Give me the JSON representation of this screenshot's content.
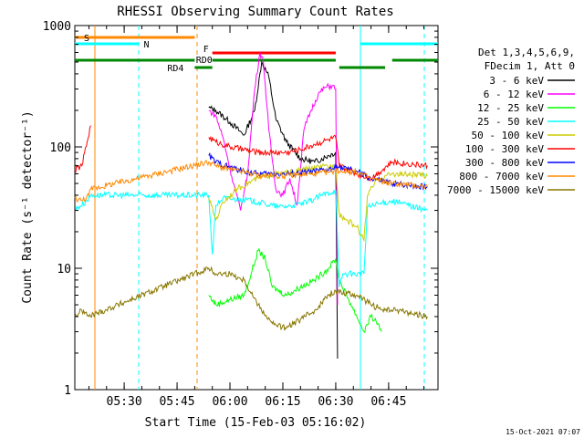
{
  "chart_data": {
    "type": "line",
    "title": "RHESSI Observing Summary Count Rates",
    "xlabel": "Start Time (15-Feb-03 05:16:02)",
    "ylabel": "Count Rate (s⁻¹ detector⁻¹)",
    "yscale": "log",
    "ylim": [
      1,
      1000
    ],
    "xlim_minutes": [
      0,
      103
    ],
    "x_ticks": [
      {
        "t": 14,
        "label": "05:30"
      },
      {
        "t": 29,
        "label": "05:45"
      },
      {
        "t": 44,
        "label": "06:00"
      },
      {
        "t": 59,
        "label": "06:15"
      },
      {
        "t": 74,
        "label": "06:30"
      },
      {
        "t": 89,
        "label": "06:45"
      }
    ],
    "y_ticks": [
      {
        "v": 1,
        "label": "1"
      },
      {
        "v": 10,
        "label": "10"
      },
      {
        "v": 100,
        "label": "100"
      },
      {
        "v": 1000,
        "label": "1000"
      }
    ],
    "legend_header": [
      "Det 1,3,4,5,6,9,",
      "FDecim 1, Att 0"
    ],
    "legend_position": "right",
    "series": [
      {
        "name": "3 - 6 keV",
        "color": "#000000",
        "x": [
          38,
          40,
          44,
          48,
          51,
          53,
          55,
          57,
          60,
          64,
          68,
          72,
          74,
          74.5
        ],
        "y": [
          210,
          200,
          160,
          125,
          200,
          500,
          380,
          170,
          110,
          80,
          75,
          85,
          90,
          1.8
        ]
      },
      {
        "name": "6 - 12 keV",
        "color": "#ff00ff",
        "x": [
          38,
          40,
          42,
          45,
          47,
          49,
          51,
          52.5,
          53.5,
          55,
          57,
          59,
          61,
          63,
          65,
          67,
          69,
          71,
          73,
          74,
          74.5
        ],
        "y": [
          200,
          180,
          120,
          50,
          30,
          60,
          300,
          600,
          500,
          140,
          45,
          40,
          55,
          33,
          140,
          200,
          270,
          310,
          320,
          300,
          5
        ]
      },
      {
        "name": "12 - 25 keV",
        "color": "#00ff00",
        "x": [
          0,
          4,
          5,
          38,
          40,
          44,
          48,
          50,
          52,
          54,
          56,
          60,
          64,
          68,
          72,
          74,
          75,
          80,
          82,
          84,
          86,
          87
        ],
        "y": [
          null,
          null,
          null,
          6,
          5,
          5.5,
          6,
          9,
          14,
          12,
          7,
          6,
          7,
          8,
          10,
          12,
          8,
          4,
          3,
          4,
          3.5,
          3
        ]
      },
      {
        "name": "25 - 50 keV",
        "color": "#00ffff",
        "x": [
          0,
          1,
          3,
          4.5,
          38,
          39,
          40,
          42,
          46,
          50,
          54,
          58,
          62,
          66,
          70,
          74,
          75,
          76,
          82,
          83,
          90,
          100
        ],
        "y": [
          30,
          32,
          35,
          40,
          40,
          13,
          33,
          38,
          37,
          36,
          34,
          32,
          33,
          35,
          40,
          44,
          7,
          9,
          9,
          32,
          36,
          30
        ]
      },
      {
        "name": "50 - 100 keV",
        "color": "#cccc00",
        "x": [
          38,
          40,
          42,
          46,
          50,
          54,
          58,
          62,
          66,
          70,
          74,
          75,
          77,
          80,
          82,
          83,
          86,
          90,
          100
        ],
        "y": [
          38,
          25,
          35,
          45,
          52,
          58,
          60,
          62,
          66,
          68,
          70,
          28,
          25,
          22,
          17,
          40,
          55,
          60,
          58
        ]
      },
      {
        "name": "100 - 300 keV",
        "color": "#ff0000",
        "x": [
          0,
          2,
          4.5,
          5,
          38,
          40,
          44,
          48,
          52,
          56,
          60,
          64,
          68,
          72,
          74,
          75,
          80,
          84,
          90,
          100
        ],
        "y": [
          65,
          70,
          150,
          null,
          120,
          110,
          100,
          95,
          90,
          90,
          90,
          95,
          105,
          115,
          120,
          70,
          60,
          55,
          75,
          70
        ]
      },
      {
        "name": "300 - 800 keV",
        "color": "#0000ff",
        "x": [
          38,
          40,
          44,
          48,
          52,
          56,
          60,
          64,
          68,
          72,
          74,
          75,
          80,
          84,
          90,
          100
        ],
        "y": [
          85,
          75,
          68,
          63,
          60,
          60,
          60,
          61,
          63,
          65,
          67,
          68,
          63,
          55,
          50,
          47
        ]
      },
      {
        "name": "800 - 7000 keV",
        "color": "#ff8800",
        "x": [
          0,
          2,
          4,
          4.5,
          38,
          40,
          44,
          48,
          52,
          56,
          60,
          64,
          68,
          72,
          74,
          80,
          84,
          90,
          100
        ],
        "y": [
          38,
          36,
          40,
          45,
          75,
          70,
          65,
          62,
          58,
          58,
          58,
          59,
          60,
          62,
          64,
          62,
          55,
          50,
          47
        ]
      },
      {
        "name": "7000 - 15000 keV",
        "color": "#887700",
        "x": [
          0,
          2,
          4,
          38,
          40,
          44,
          48,
          52,
          56,
          60,
          64,
          68,
          72,
          74,
          80,
          84,
          88,
          92,
          96,
          100
        ],
        "y": [
          4,
          4.5,
          4,
          10,
          9,
          9,
          8,
          5,
          3.5,
          3.2,
          3.8,
          4.5,
          6,
          6.5,
          6,
          5,
          4.5,
          4.5,
          4.2,
          4
        ]
      }
    ],
    "flags": [
      {
        "label": "S",
        "color": "#ff8800",
        "x": [
          0,
          34
        ]
      },
      {
        "label": "N",
        "color": "#00ffff",
        "x": [
          0,
          18
        ]
      },
      {
        "label": "F",
        "color": "#ff0000",
        "x": [
          39,
          74
        ]
      },
      {
        "label": "RD0",
        "color": "#008800",
        "x": [
          39,
          74
        ]
      },
      {
        "label": "RD4",
        "color": "#008800",
        "x": [
          34,
          39
        ]
      }
    ]
  },
  "timestamp": "15-Oct-2021 07:07"
}
